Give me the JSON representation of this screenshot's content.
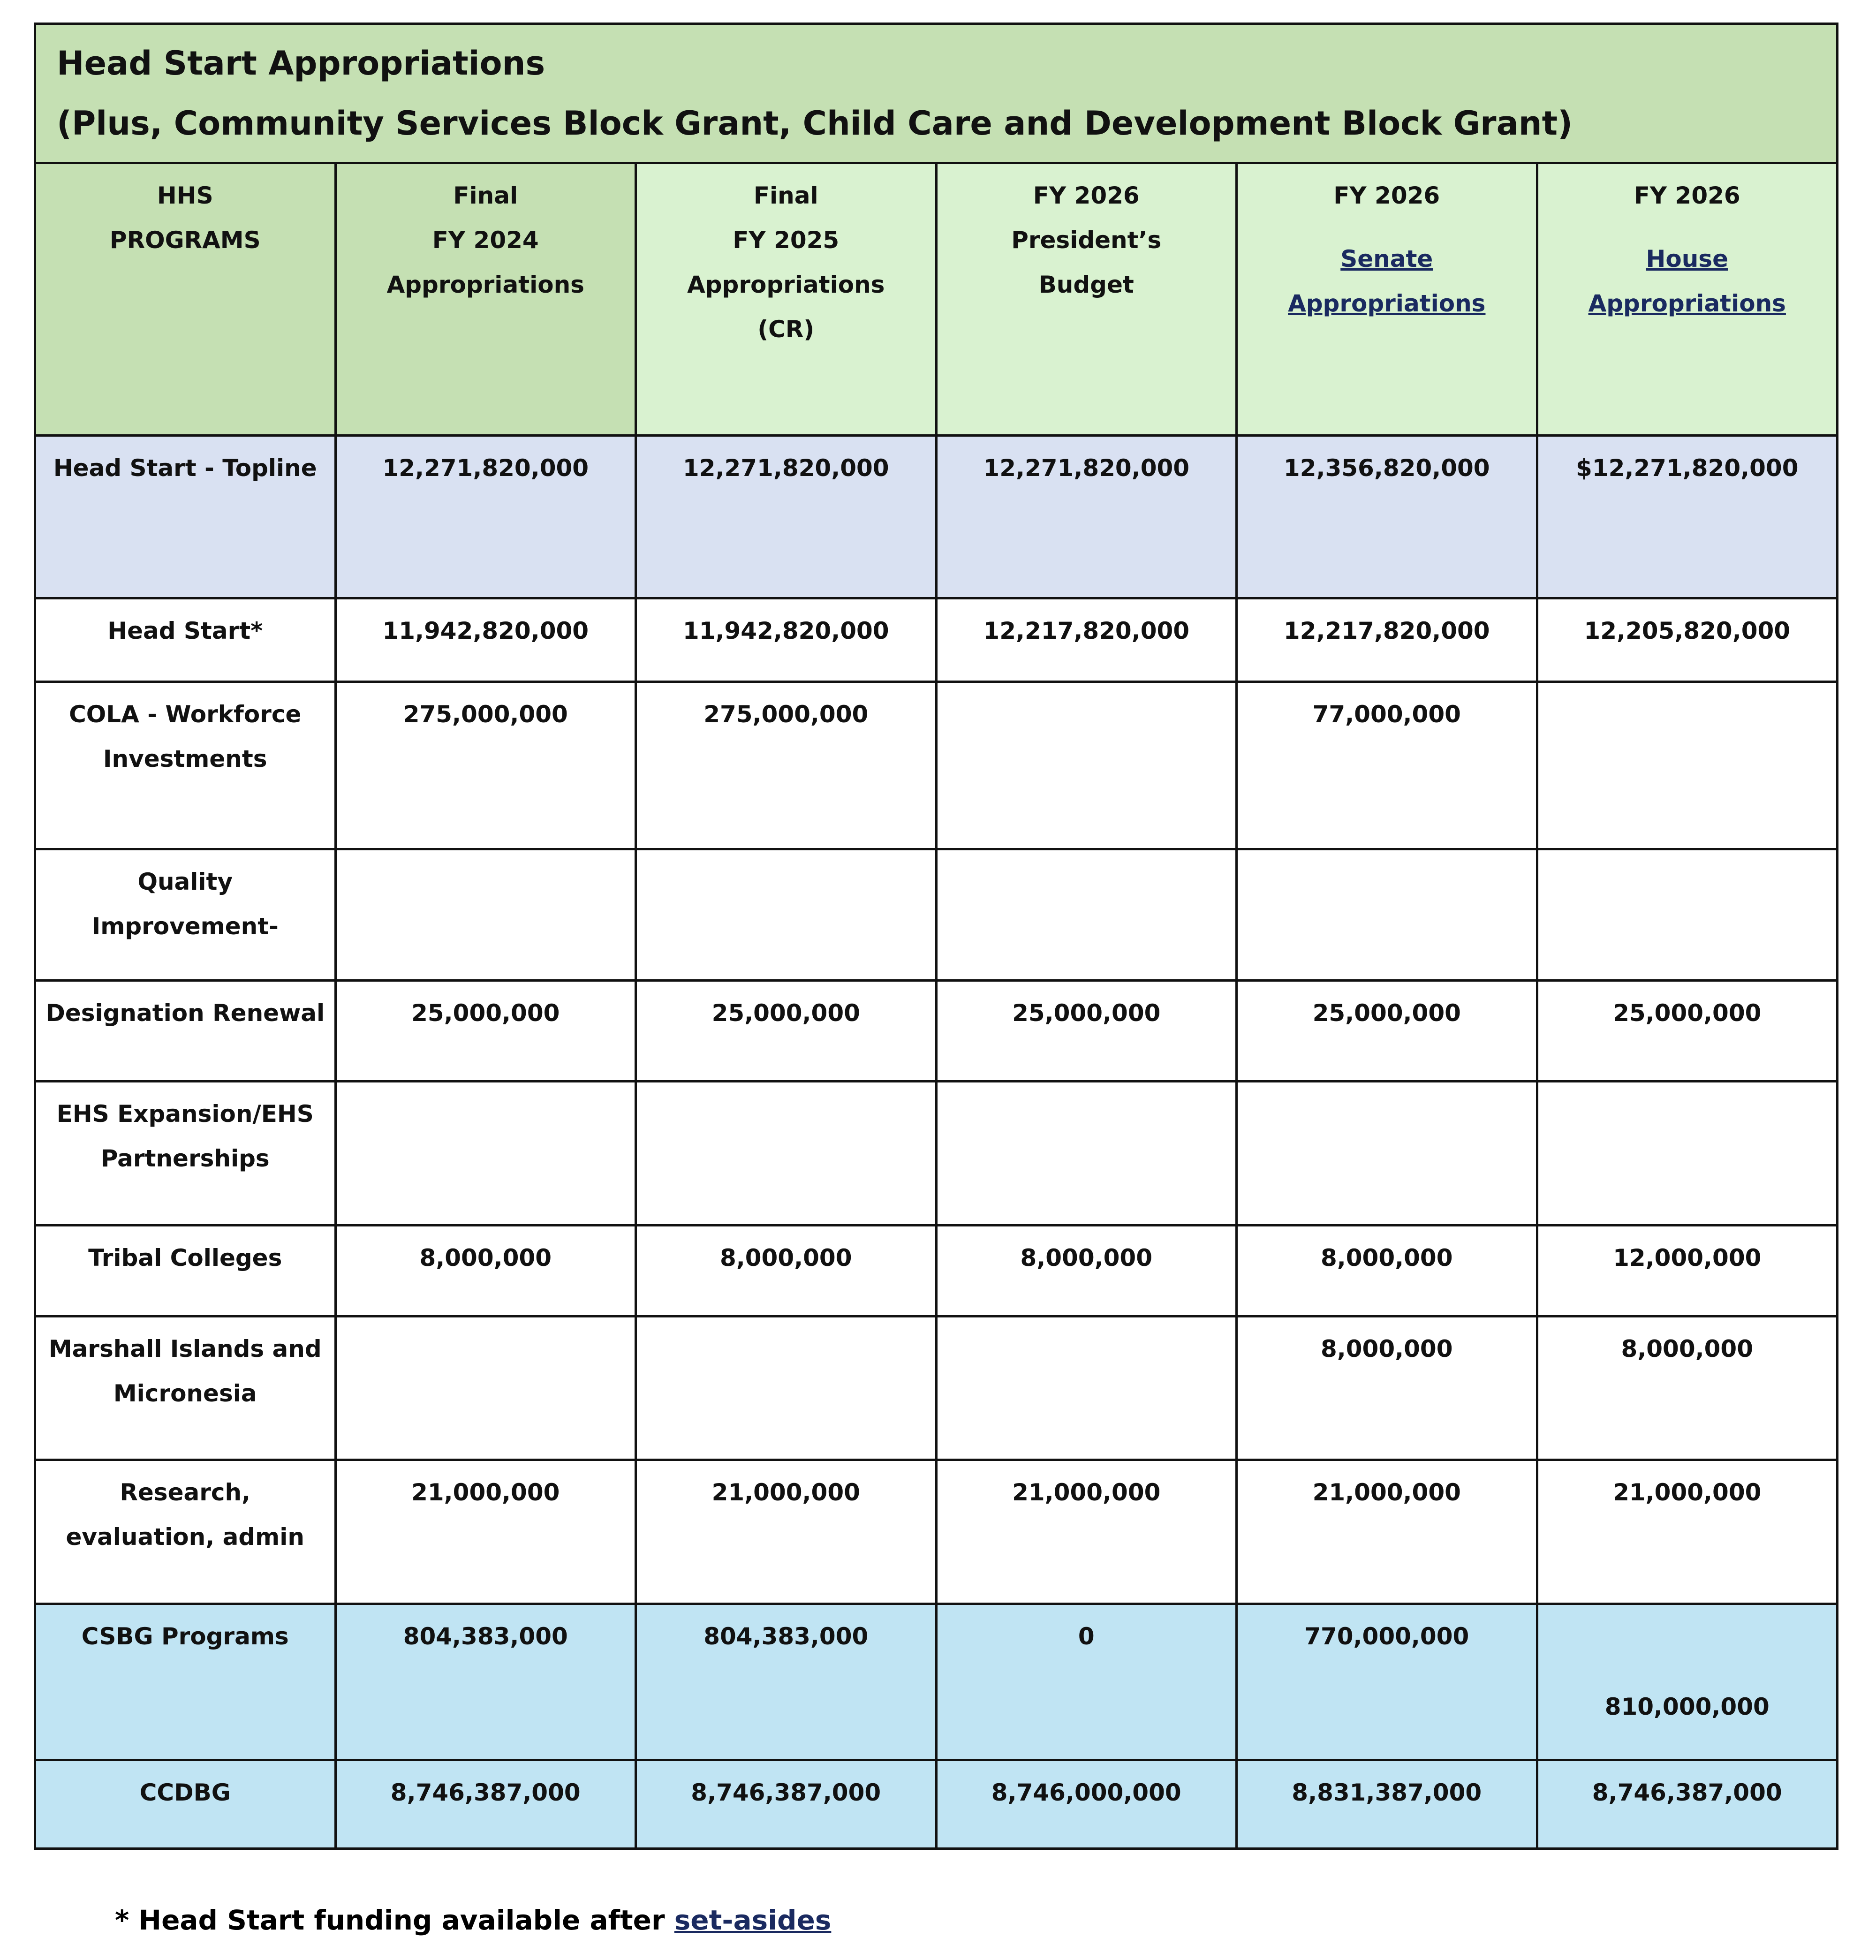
{
  "header": {
    "title": "Head Start Appropriations",
    "subtitle": "(Plus, Community Services Block Grant, Child Care and Development Block Grant)"
  },
  "table": {
    "columns": [
      [
        "HHS",
        "PROGRAMS"
      ],
      [
        "Final",
        "FY 2024",
        "Appropriations"
      ],
      [
        "Final",
        "FY 2025",
        "Appropriations",
        "(CR)"
      ],
      [
        "FY 2026",
        "President’s",
        "Budget"
      ],
      [
        "FY 2026",
        "Senate  Appropriations"
      ],
      [
        "FY 2026",
        "House  Appropriations"
      ]
    ],
    "rows": [
      [
        "Head Start - Topline",
        "12,271,820,000",
        "12,271,820,000",
        "12,271,820,000",
        "12,356,820,000",
        "$12,271,820,000"
      ],
      [
        "Head Start*",
        "11,942,820,000",
        "11,942,820,000",
        "12,217,820,000",
        "12,217,820,000",
        "12,205,820,000"
      ],
      [
        "COLA - Workforce Investments",
        "275,000,000",
        "275,000,000",
        null,
        "77,000,000",
        null
      ],
      [
        "Quality Improvement-",
        null,
        null,
        null,
        null,
        null
      ],
      [
        "Designation Renewal",
        "25,000,000",
        "25,000,000",
        "25,000,000",
        "25,000,000",
        "25,000,000"
      ],
      [
        "EHS Expansion/EHS Partnerships",
        null,
        null,
        null,
        null,
        null
      ],
      [
        "Tribal Colleges",
        "8,000,000",
        "8,000,000",
        "8,000,000",
        "8,000,000",
        "12,000,000"
      ],
      [
        "Marshall Islands and Micronesia",
        null,
        null,
        null,
        "8,000,000",
        "8,000,000"
      ],
      [
        "Research, evaluation, admin",
        "21,000,000",
        "21,000,000",
        "21,000,000",
        "21,000,000",
        "21,000,000"
      ],
      [
        "CSBG Programs",
        "804,383,000",
        "804,383,000",
        "0",
        "770,000,000",
        "810,000,000"
      ],
      [
        "CCDBG",
        "8,746,387,000",
        "8,746,387,000",
        "8,746,000,000",
        "8,831,387,000",
        "8,746,387,000"
      ]
    ]
  },
  "footnote": {
    "text": "* Head Start funding available after",
    "link": "set-asides"
  }
}
